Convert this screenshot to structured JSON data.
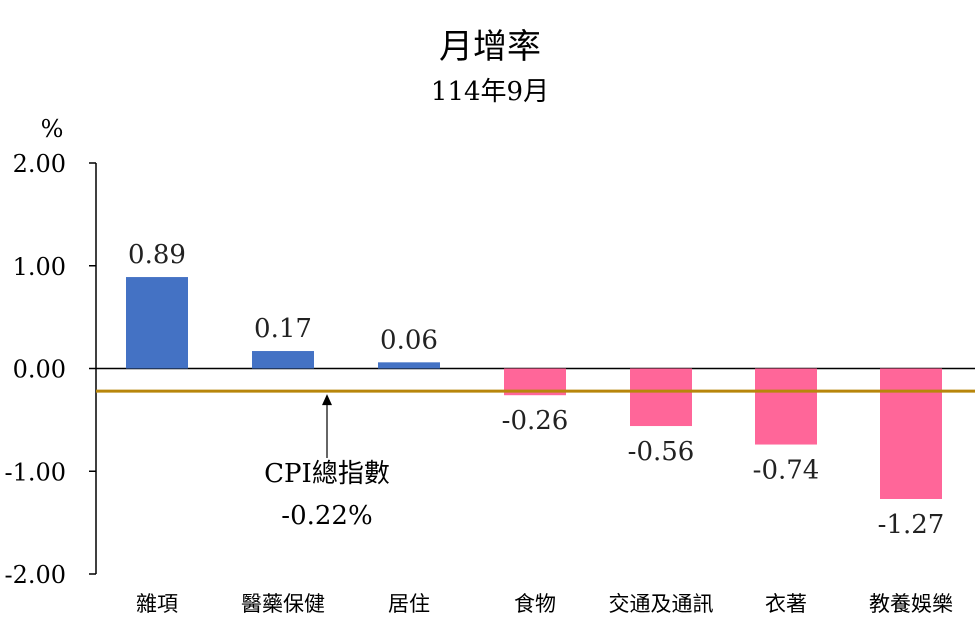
{
  "chart_data": {
    "type": "bar",
    "title": "月增率",
    "subtitle": "114年9月",
    "ylabel": "%",
    "ylim": [
      -2,
      2
    ],
    "yticks": [
      2,
      1,
      0,
      -1,
      -2
    ],
    "ytick_labels": [
      "2.00",
      "1.00",
      "0.00",
      "-1.00",
      "-2.00"
    ],
    "categories": [
      "雜項",
      "醫藥保健",
      "居住",
      "食物",
      "交通及通訊",
      "衣著",
      "教養娛樂"
    ],
    "values": [
      0.89,
      0.17,
      0.06,
      -0.26,
      -0.56,
      -0.74,
      -1.27
    ],
    "value_labels": [
      "0.89",
      "0.17",
      "0.06",
      "-0.26",
      "-0.56",
      "-0.74",
      "-1.27"
    ],
    "reference_line": {
      "value": -0.22,
      "label_line1": "CPI總指數",
      "label_line2": "-0.22%"
    },
    "colors": {
      "positive": "#4472C4",
      "negative": "#FF6699",
      "reference": "#B8860B",
      "axis": "#000000"
    },
    "grid": false
  }
}
